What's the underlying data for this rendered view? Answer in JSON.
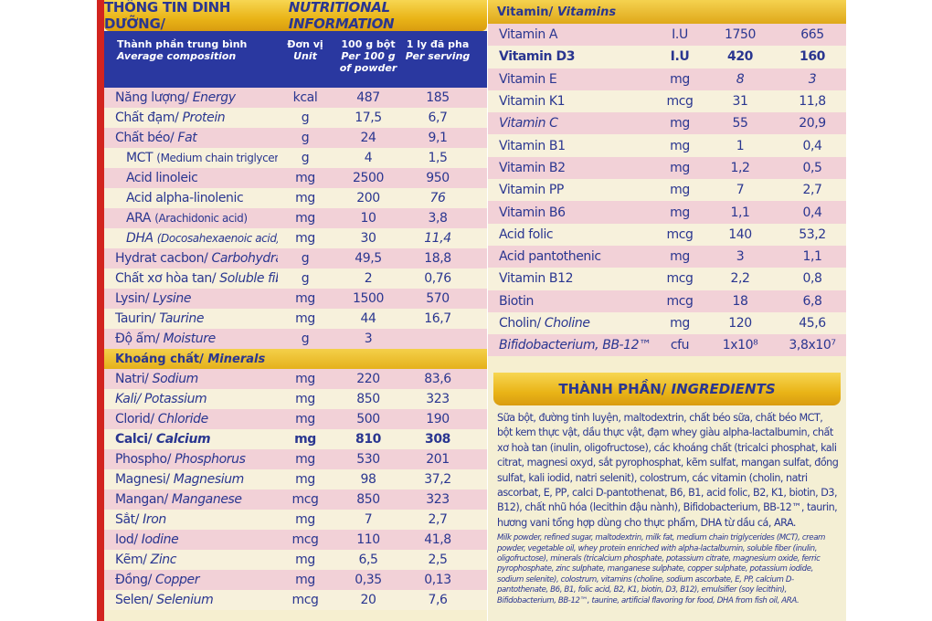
{
  "nutrition": {
    "title_vi": "THÔNG TIN DINH DƯỠNG/",
    "title_en": "NUTRITIONAL INFORMATION",
    "header": {
      "component_vi": "Thành phần trung bình",
      "component_en": "Average composition",
      "unit_vi": "Đơn vị",
      "unit_en": "Unit",
      "per100_l1": "100 g bột",
      "per100_l2": "Per 100 g",
      "per100_l3": "of powder",
      "serving_l1": "1 ly đã pha",
      "serving_l2": "Per serving"
    },
    "rows": [
      {
        "vi": "Năng lượng/",
        "en": "Energy",
        "unit": "kcal",
        "per100": "487",
        "serving": "185"
      },
      {
        "vi": "Chất đạm/",
        "en": "Protein",
        "unit": "g",
        "per100": "17,5",
        "serving": "6,7"
      },
      {
        "vi": "Chất béo/",
        "en": "Fat",
        "unit": "g",
        "per100": "24",
        "serving": "9,1"
      },
      {
        "vi": "MCT",
        "en": "(Medium chain triglycerides)",
        "unit": "g",
        "per100": "4",
        "serving": "1,5"
      },
      {
        "vi": "Acid linoleic",
        "en": "",
        "unit": "mg",
        "per100": "2500",
        "serving": "950"
      },
      {
        "vi": "Acid alpha-linolenic",
        "en": "",
        "unit": "mg",
        "per100": "200",
        "serving": "76"
      },
      {
        "vi": "ARA",
        "en": "(Arachidonic acid)",
        "unit": "mg",
        "per100": "10",
        "serving": "3,8"
      },
      {
        "vi": "DHA",
        "en": "(Docosahexaenoic acid)",
        "unit": "mg",
        "per100": "30",
        "serving": "11,4"
      },
      {
        "vi": "Hydrat cacbon/",
        "en": "Carbohydrate",
        "unit": "g",
        "per100": "49,5",
        "serving": "18,8"
      },
      {
        "vi": "Chất xơ hòa tan/",
        "en": "Soluble fiber",
        "unit": "g",
        "per100": "2",
        "serving": "0,76"
      },
      {
        "vi": "Lysin/",
        "en": "Lysine",
        "unit": "mg",
        "per100": "1500",
        "serving": "570"
      },
      {
        "vi": "Taurin/",
        "en": "Taurine",
        "unit": "mg",
        "per100": "44",
        "serving": "16,7"
      },
      {
        "vi": "Độ ẩm/",
        "en": "Moisture",
        "unit": "g",
        "per100": "3",
        "serving": ""
      }
    ]
  },
  "minerals": {
    "title_vi": "Khoáng chất/",
    "title_en": "Minerals",
    "rows": [
      {
        "vi": "Natri/",
        "en": "Sodium",
        "unit": "mg",
        "per100": "220",
        "serving": "83,6"
      },
      {
        "vi": "Kali/",
        "en": "Potassium",
        "unit": "mg",
        "per100": "850",
        "serving": "323"
      },
      {
        "vi": "Clorid/",
        "en": "Chloride",
        "unit": "mg",
        "per100": "500",
        "serving": "190"
      },
      {
        "vi": "Calci/",
        "en": "Calcium",
        "unit": "mg",
        "per100": "810",
        "serving": "308"
      },
      {
        "vi": "Phospho/",
        "en": "Phosphorus",
        "unit": "mg",
        "per100": "530",
        "serving": "201"
      },
      {
        "vi": "Magnesi/",
        "en": "Magnesium",
        "unit": "mg",
        "per100": "98",
        "serving": "37,2"
      },
      {
        "vi": "Mangan/",
        "en": "Manganese",
        "unit": "mcg",
        "per100": "850",
        "serving": "323"
      },
      {
        "vi": "Sắt/",
        "en": "Iron",
        "unit": "mg",
        "per100": "7",
        "serving": "2,7"
      },
      {
        "vi": "Iod/",
        "en": "Iodine",
        "unit": "mcg",
        "per100": "110",
        "serving": "41,8"
      },
      {
        "vi": "Kẽm/",
        "en": "Zinc",
        "unit": "mg",
        "per100": "6,5",
        "serving": "2,5"
      },
      {
        "vi": "Đồng/",
        "en": "Copper",
        "unit": "mg",
        "per100": "0,35",
        "serving": "0,13"
      },
      {
        "vi": "Selen/",
        "en": "Selenium",
        "unit": "mcg",
        "per100": "20",
        "serving": "7,6"
      }
    ]
  },
  "vitamins": {
    "title_vi": "Vitamin/",
    "title_en": "Vitamins",
    "rows": [
      {
        "name": "Vitamin A",
        "unit": "I.U",
        "per100": "1750",
        "serving": "665"
      },
      {
        "name": "Vitamin D3",
        "unit": "I.U",
        "per100": "420",
        "serving": "160"
      },
      {
        "name": "Vitamin E",
        "unit": "mg",
        "per100": "8",
        "serving": "3"
      },
      {
        "name": "Vitamin K1",
        "unit": "mcg",
        "per100": "31",
        "serving": "11,8"
      },
      {
        "name": "Vitamin C",
        "unit": "mg",
        "per100": "55",
        "serving": "20,9"
      },
      {
        "name": "Vitamin B1",
        "unit": "mg",
        "per100": "1",
        "serving": "0,4"
      },
      {
        "name": "Vitamin B2",
        "unit": "mg",
        "per100": "1,2",
        "serving": "0,5"
      },
      {
        "name": "Vitamin PP",
        "unit": "mg",
        "per100": "7",
        "serving": "2,7"
      },
      {
        "name": "Vitamin B6",
        "unit": "mg",
        "per100": "1,1",
        "serving": "0,4"
      },
      {
        "name": "Acid folic",
        "unit": "mcg",
        "per100": "140",
        "serving": "53,2"
      },
      {
        "name": "Acid pantothenic",
        "unit": "mg",
        "per100": "3",
        "serving": "1,1"
      },
      {
        "name": "Vitamin B12",
        "unit": "mcg",
        "per100": "2,2",
        "serving": "0,8"
      },
      {
        "name": "Biotin",
        "unit": "mcg",
        "per100": "18",
        "serving": "6,8"
      },
      {
        "name": "Cholin/",
        "name_en": "Choline",
        "unit": "mg",
        "per100": "120",
        "serving": "45,6"
      },
      {
        "name": "Bifidobacterium, BB-12™",
        "unit": "cfu",
        "per100": "1x10⁸",
        "serving": "3,8x10⁷"
      }
    ]
  },
  "ingredients": {
    "title_vi": "THÀNH PHẦN/",
    "title_en": "INGREDIENTS",
    "text_vi": "Sữa bột, đường tinh luyện, maltodextrin, chất béo sữa, chất béo MCT, bột kem thực vật, dầu thực vật, đạm whey giàu alpha-lactalbumin, chất xơ hoà tan (inulin, oligofructose), các khoáng chất (tricalci phosphat, kali citrat, magnesi oxyd, sắt pyrophosphat, kẽm sulfat, mangan sulfat, đồng sulfat, kali iodid, natri selenit), colostrum, các vitamin (cholin, natri ascorbat, E, PP, calci D-pantothenat, B6, B1, acid folic, B2, K1, biotin, D3, B12), chất nhũ hóa (lecithin đậu nành), Bifidobacterium, BB-12™, taurin, hương vani tổng hợp dùng cho thực phẩm, DHA từ dầu cá, ARA.",
    "text_en": "Milk powder, refined sugar, maltodextrin, milk fat, medium chain triglycerides (MCT), cream powder, vegetable oil, whey protein enriched with alpha-lactalbumin, soluble fiber (inulin, oligofructose), minerals (tricalcium phosphate, potassium citrate, magnesium oxide, ferric pyrophosphate, zinc sulphate, manganese sulphate, copper sulphate, potassium iodide, sodium selenite), colostrum, vitamins (choline, sodium ascorbate, E, PP, calcium D-pantothenate, B6, B1, folic acid, B2, K1, biotin, D3, B12), emulsifier (soy lecithin), Bifidobacterium, BB-12™, taurine, artificial flavoring for food, DHA from fish oil, ARA."
  },
  "colors": {
    "ink_blue": "#2a3690",
    "header_blue": "#2a38a0",
    "gold": "#e9b417",
    "row_pink": "#f2d1d7",
    "row_cream": "#f7f1dc",
    "edge_red": "#d2241f"
  }
}
